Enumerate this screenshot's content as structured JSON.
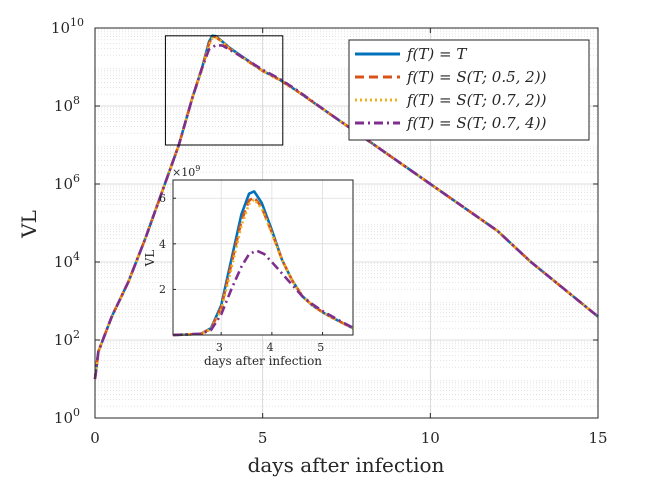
{
  "chart_data": [
    {
      "type": "line",
      "name": "main",
      "xlabel": "days after infection",
      "ylabel": "VL",
      "xlim": [
        0,
        15
      ],
      "ylim_log10": [
        0,
        10
      ],
      "yscale": "log",
      "grid": true,
      "x_ticks": [
        0,
        5,
        10,
        15
      ],
      "x_tick_labels": [
        "0",
        "5",
        "10",
        "15"
      ],
      "y_ticks_log10": [
        0,
        2,
        4,
        6,
        8,
        10
      ],
      "y_tick_labels": [
        {
          "base": "10",
          "exp": "0"
        },
        {
          "base": "10",
          "exp": "2"
        },
        {
          "base": "10",
          "exp": "4"
        },
        {
          "base": "10",
          "exp": "6"
        },
        {
          "base": "10",
          "exp": "8"
        },
        {
          "base": "10",
          "exp": "10"
        }
      ],
      "zoom_box": {
        "x": [
          2.1,
          5.6
        ],
        "y_log10": [
          7.0,
          9.8
        ]
      },
      "legend_location": "top-right",
      "series": [
        {
          "name": "f(T) = T",
          "color": "#0072BD",
          "dash": "solid",
          "points": [
            [
              0,
              1
            ],
            [
              0.1,
              1.7
            ],
            [
              0.5,
              2.6
            ],
            [
              1,
              3.5
            ],
            [
              1.5,
              4.6
            ],
            [
              2,
              5.8
            ],
            [
              2.5,
              7.0
            ],
            [
              2.9,
              8.2
            ],
            [
              3.2,
              9.0
            ],
            [
              3.4,
              9.65
            ],
            [
              3.5,
              9.8
            ],
            [
              3.6,
              9.79
            ],
            [
              3.8,
              9.65
            ],
            [
              4,
              9.5
            ],
            [
              4.5,
              9.2
            ],
            [
              5,
              8.9
            ],
            [
              5.5,
              8.68
            ],
            [
              6,
              8.4
            ],
            [
              7,
              7.8
            ],
            [
              8,
              7.2
            ],
            [
              9,
              6.6
            ],
            [
              10,
              6.0
            ],
            [
              11,
              5.4
            ],
            [
              12,
              4.8
            ],
            [
              13,
              4.0
            ],
            [
              14,
              3.3
            ],
            [
              15,
              2.6
            ]
          ]
        },
        {
          "name": "f(T) = S(T; 0.5, 2)",
          "color": "#D95319",
          "dash": "dashed",
          "points": [
            [
              0,
              1
            ],
            [
              0.1,
              1.7
            ],
            [
              0.5,
              2.6
            ],
            [
              1,
              3.5
            ],
            [
              1.5,
              4.6
            ],
            [
              2,
              5.8
            ],
            [
              2.5,
              7.0
            ],
            [
              2.9,
              8.2
            ],
            [
              3.2,
              9.0
            ],
            [
              3.4,
              9.6
            ],
            [
              3.5,
              9.78
            ],
            [
              3.6,
              9.77
            ],
            [
              3.8,
              9.64
            ],
            [
              4,
              9.48
            ],
            [
              4.5,
              9.18
            ],
            [
              5,
              8.9
            ],
            [
              5.5,
              8.67
            ],
            [
              6,
              8.4
            ],
            [
              7,
              7.8
            ],
            [
              8,
              7.2
            ],
            [
              9,
              6.6
            ],
            [
              10,
              6.0
            ],
            [
              11,
              5.4
            ],
            [
              12,
              4.8
            ],
            [
              13,
              4.0
            ],
            [
              14,
              3.3
            ],
            [
              15,
              2.6
            ]
          ]
        },
        {
          "name": "f(T) = S(T; 0.7, 2)",
          "color": "#EDB120",
          "dash": "dotted",
          "points": [
            [
              0,
              1
            ],
            [
              0.1,
              1.7
            ],
            [
              0.5,
              2.6
            ],
            [
              1,
              3.5
            ],
            [
              1.5,
              4.6
            ],
            [
              2,
              5.8
            ],
            [
              2.5,
              7.0
            ],
            [
              2.9,
              8.2
            ],
            [
              3.2,
              8.95
            ],
            [
              3.4,
              9.55
            ],
            [
              3.5,
              9.74
            ],
            [
              3.6,
              9.76
            ],
            [
              3.8,
              9.64
            ],
            [
              4,
              9.48
            ],
            [
              4.5,
              9.18
            ],
            [
              5,
              8.9
            ],
            [
              5.5,
              8.67
            ],
            [
              6,
              8.4
            ],
            [
              7,
              7.8
            ],
            [
              8,
              7.2
            ],
            [
              9,
              6.6
            ],
            [
              10,
              6.0
            ],
            [
              11,
              5.4
            ],
            [
              12,
              4.8
            ],
            [
              13,
              4.0
            ],
            [
              14,
              3.3
            ],
            [
              15,
              2.6
            ]
          ]
        },
        {
          "name": "f(T) = S(T; 0.7, 4)",
          "color": "#7E2F8E",
          "dash": "dashdot",
          "points": [
            [
              0,
              1
            ],
            [
              0.1,
              1.7
            ],
            [
              0.5,
              2.6
            ],
            [
              1,
              3.5
            ],
            [
              1.5,
              4.6
            ],
            [
              2,
              5.8
            ],
            [
              2.5,
              7.0
            ],
            [
              2.9,
              8.2
            ],
            [
              3.2,
              9.0
            ],
            [
              3.4,
              9.45
            ],
            [
              3.6,
              9.56
            ],
            [
              3.8,
              9.55
            ],
            [
              4,
              9.45
            ],
            [
              4.5,
              9.2
            ],
            [
              5,
              8.93
            ],
            [
              5.5,
              8.7
            ],
            [
              6,
              8.42
            ],
            [
              7,
              7.8
            ],
            [
              8,
              7.2
            ],
            [
              9,
              6.6
            ],
            [
              10,
              6.0
            ],
            [
              11,
              5.4
            ],
            [
              12,
              4.8
            ],
            [
              13,
              4.0
            ],
            [
              14,
              3.3
            ],
            [
              15,
              2.6
            ]
          ]
        }
      ],
      "legend": [
        {
          "label": "f(T) = T"
        },
        {
          "label": "f(T) = S(T; 0.5, 2))"
        },
        {
          "label": "f(T) = S(T; 0.7, 2))"
        },
        {
          "label": "f(T) = S(T; 0.7, 4))"
        }
      ]
    },
    {
      "type": "line",
      "name": "inset",
      "xlabel": "days after infection",
      "ylabel": "VL",
      "xlim": [
        2.05,
        5.6
      ],
      "ylim": [
        0,
        6.8
      ],
      "y_multiplier": "×10^9",
      "y_multiplier_base": "×10",
      "y_multiplier_exp": "9",
      "grid": true,
      "x_ticks": [
        3,
        4,
        5
      ],
      "x_tick_labels": [
        "3",
        "4",
        "5"
      ],
      "y_ticks": [
        2,
        4,
        6
      ],
      "y_tick_labels": [
        "2",
        "4",
        "6"
      ],
      "series": [
        {
          "name": "f(T) = T",
          "color": "#0072BD",
          "dash": "solid",
          "points": [
            [
              2.05,
              0
            ],
            [
              2.3,
              0.02
            ],
            [
              2.6,
              0.05
            ],
            [
              2.8,
              0.3
            ],
            [
              3.0,
              1.3
            ],
            [
              3.2,
              3.3
            ],
            [
              3.4,
              5.3
            ],
            [
              3.55,
              6.2
            ],
            [
              3.65,
              6.3
            ],
            [
              3.8,
              5.8
            ],
            [
              4.0,
              4.6
            ],
            [
              4.2,
              3.3
            ],
            [
              4.4,
              2.4
            ],
            [
              4.6,
              1.7
            ],
            [
              4.8,
              1.3
            ],
            [
              5.0,
              1.0
            ],
            [
              5.2,
              0.75
            ],
            [
              5.4,
              0.52
            ],
            [
              5.6,
              0.3
            ]
          ]
        },
        {
          "name": "f(T) = S(T; 0.5, 2)",
          "color": "#D95319",
          "dash": "dashed",
          "points": [
            [
              2.05,
              0
            ],
            [
              2.3,
              0.02
            ],
            [
              2.6,
              0.05
            ],
            [
              2.8,
              0.28
            ],
            [
              3.0,
              1.2
            ],
            [
              3.2,
              3.1
            ],
            [
              3.4,
              5.0
            ],
            [
              3.55,
              5.9
            ],
            [
              3.65,
              6.05
            ],
            [
              3.8,
              5.6
            ],
            [
              4.0,
              4.5
            ],
            [
              4.2,
              3.3
            ],
            [
              4.4,
              2.4
            ],
            [
              4.6,
              1.7
            ],
            [
              4.8,
              1.3
            ],
            [
              5.0,
              1.0
            ],
            [
              5.2,
              0.75
            ],
            [
              5.4,
              0.52
            ],
            [
              5.6,
              0.3
            ]
          ]
        },
        {
          "name": "f(T) = S(T; 0.7, 2)",
          "color": "#EDB120",
          "dash": "dotted",
          "points": [
            [
              2.05,
              0
            ],
            [
              2.3,
              0.02
            ],
            [
              2.6,
              0.05
            ],
            [
              2.8,
              0.25
            ],
            [
              3.0,
              1.1
            ],
            [
              3.2,
              2.9
            ],
            [
              3.4,
              4.8
            ],
            [
              3.55,
              5.75
            ],
            [
              3.65,
              5.95
            ],
            [
              3.8,
              5.55
            ],
            [
              4.0,
              4.45
            ],
            [
              4.2,
              3.3
            ],
            [
              4.4,
              2.4
            ],
            [
              4.6,
              1.7
            ],
            [
              4.8,
              1.3
            ],
            [
              5.0,
              1.0
            ],
            [
              5.2,
              0.75
            ],
            [
              5.4,
              0.52
            ],
            [
              5.6,
              0.3
            ]
          ]
        },
        {
          "name": "f(T) = S(T; 0.7, 4)",
          "color": "#7E2F8E",
          "dash": "dashdot",
          "points": [
            [
              2.05,
              0
            ],
            [
              2.3,
              0.02
            ],
            [
              2.6,
              0.05
            ],
            [
              2.8,
              0.22
            ],
            [
              3.0,
              0.9
            ],
            [
              3.2,
              2.0
            ],
            [
              3.4,
              3.0
            ],
            [
              3.55,
              3.55
            ],
            [
              3.7,
              3.7
            ],
            [
              3.85,
              3.55
            ],
            [
              4.0,
              3.2
            ],
            [
              4.2,
              2.7
            ],
            [
              4.4,
              2.2
            ],
            [
              4.6,
              1.7
            ],
            [
              4.8,
              1.35
            ],
            [
              5.0,
              1.05
            ],
            [
              5.2,
              0.8
            ],
            [
              5.4,
              0.55
            ],
            [
              5.6,
              0.32
            ]
          ]
        }
      ]
    }
  ]
}
